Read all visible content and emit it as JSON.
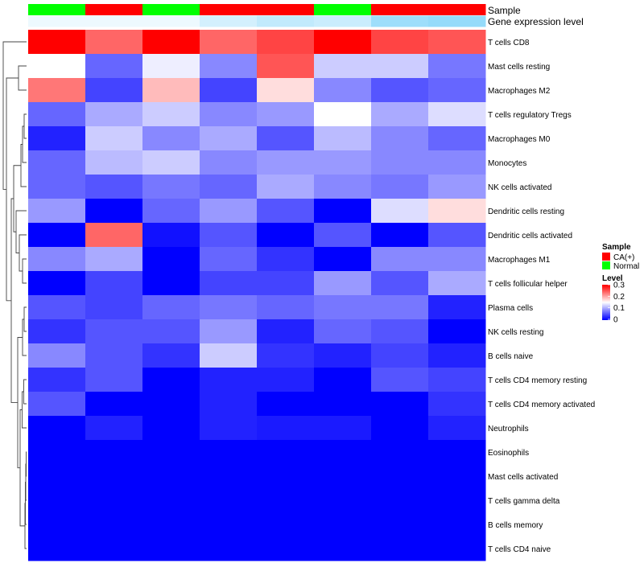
{
  "chart_data": {
    "type": "heatmap",
    "title": "",
    "row_labels": [
      "T cells CD8",
      "Mast cells resting",
      "Macrophages M2",
      "T cells regulatory  Tregs",
      "Macrophages M0",
      "Monocytes",
      "NK cells activated",
      "Dendritic cells resting",
      "Dendritic cells activated",
      "Macrophages M1",
      "T cells follicular helper",
      "Plasma cells",
      "NK cells resting",
      "B cells naive",
      "T cells CD4 memory resting",
      "T cells CD4 memory activated",
      "Neutrophils",
      "Eosinophils",
      "Mast cells activated",
      "T cells gamma delta",
      "B cells memory",
      "T cells CD4 naive"
    ],
    "values": [
      [
        0.3,
        0.24,
        0.3,
        0.24,
        0.26,
        0.3,
        0.26,
        0.25
      ],
      [
        0.15,
        0.06,
        0.14,
        0.08,
        0.25,
        0.12,
        0.12,
        0.07
      ],
      [
        0.23,
        0.04,
        0.19,
        0.04,
        0.17,
        0.08,
        0.05,
        0.06
      ],
      [
        0.06,
        0.1,
        0.12,
        0.08,
        0.09,
        0.15,
        0.1,
        0.13
      ],
      [
        0.02,
        0.12,
        0.08,
        0.1,
        0.05,
        0.11,
        0.08,
        0.06
      ],
      [
        0.06,
        0.11,
        0.12,
        0.08,
        0.09,
        0.09,
        0.08,
        0.08
      ],
      [
        0.06,
        0.05,
        0.07,
        0.06,
        0.1,
        0.08,
        0.07,
        0.09
      ],
      [
        0.09,
        0.0,
        0.06,
        0.09,
        0.05,
        0.0,
        0.13,
        0.17
      ],
      [
        0.0,
        0.24,
        0.01,
        0.05,
        0.0,
        0.05,
        0.0,
        0.05
      ],
      [
        0.08,
        0.1,
        0.0,
        0.06,
        0.03,
        0.0,
        0.08,
        0.08
      ],
      [
        0.0,
        0.04,
        0.0,
        0.04,
        0.04,
        0.09,
        0.05,
        0.1
      ],
      [
        0.05,
        0.04,
        0.06,
        0.07,
        0.06,
        0.07,
        0.07,
        0.02
      ],
      [
        0.03,
        0.05,
        0.05,
        0.09,
        0.02,
        0.06,
        0.05,
        0.0
      ],
      [
        0.08,
        0.05,
        0.03,
        0.12,
        0.03,
        0.02,
        0.04,
        0.02
      ],
      [
        0.03,
        0.05,
        0.0,
        0.02,
        0.02,
        0.0,
        0.05,
        0.04
      ],
      [
        0.05,
        0.0,
        0.0,
        0.02,
        0.0,
        0.0,
        0.0,
        0.03
      ],
      [
        0.0,
        0.02,
        0.0,
        0.02,
        0.015,
        0.015,
        0.0,
        0.02
      ],
      [
        0.0,
        0.0,
        0.0,
        0.0,
        0.0,
        0.0,
        0.0,
        0.0
      ],
      [
        0.0,
        0.0,
        0.0,
        0.0,
        0.0,
        0.0,
        0.0,
        0.0
      ],
      [
        0.0,
        0.0,
        0.0,
        0.0,
        0.0,
        0.0,
        0.0,
        0.0
      ],
      [
        0.0,
        0.0,
        0.0,
        0.0,
        0.0,
        0.0,
        0.0,
        0.0
      ],
      [
        0.0,
        0.0,
        0.0,
        0.0,
        0.0,
        0.0,
        0.0,
        0.0
      ]
    ],
    "column_annotations": {
      "sample_label": "Sample",
      "sample": [
        "Normal",
        "CA(+)",
        "Normal",
        "CA(+)",
        "CA(+)",
        "Normal",
        "CA(+)",
        "CA(+)"
      ],
      "expression_label": "Gene expression level",
      "expression": [
        0.1,
        0.1,
        0.1,
        0.25,
        0.35,
        0.3,
        0.55,
        0.6
      ]
    },
    "color_scale": {
      "low": "#0000ff",
      "mid": "#ffffff",
      "high": "#ff0000",
      "min": 0,
      "mid_value": 0.15,
      "max": 0.3
    },
    "expression_scale": {
      "low": "#ffffff",
      "high": "#4fc3f7"
    },
    "row_dendrogram": [
      [
        17,
        18
      ],
      [
        22,
        19
      ],
      [
        23,
        20
      ],
      [
        24,
        21
      ],
      [
        14,
        15
      ],
      [
        26,
        16
      ],
      [
        27,
        25
      ],
      [
        11,
        12
      ],
      [
        29,
        13
      ],
      [
        30,
        28
      ],
      [
        3,
        4
      ],
      [
        32,
        5
      ],
      [
        33,
        6
      ],
      [
        9,
        10
      ],
      [
        35,
        8
      ],
      [
        36,
        7
      ],
      [
        34,
        37
      ],
      [
        38,
        31
      ],
      [
        1,
        2
      ],
      [
        40,
        39
      ],
      [
        0,
        41
      ]
    ],
    "row_dendrogram_heights": [
      0.5,
      1.0,
      1.5,
      2.0,
      3.5,
      5.5,
      8.0,
      3.0,
      5.0,
      11.0,
      3.0,
      5.0,
      7.0,
      5.0,
      9.0,
      13.0,
      16.0,
      19.0,
      10.0,
      25.0,
      29.0
    ],
    "legend": {
      "sample_title": "Sample",
      "sample_items": [
        {
          "label": "CA(+)",
          "color": "#ff0000"
        },
        {
          "label": "Normal",
          "color": "#00ff00"
        }
      ],
      "level_title": "Level",
      "level_ticks": [
        "0.3",
        "0.2",
        "0.1",
        "0"
      ]
    }
  }
}
